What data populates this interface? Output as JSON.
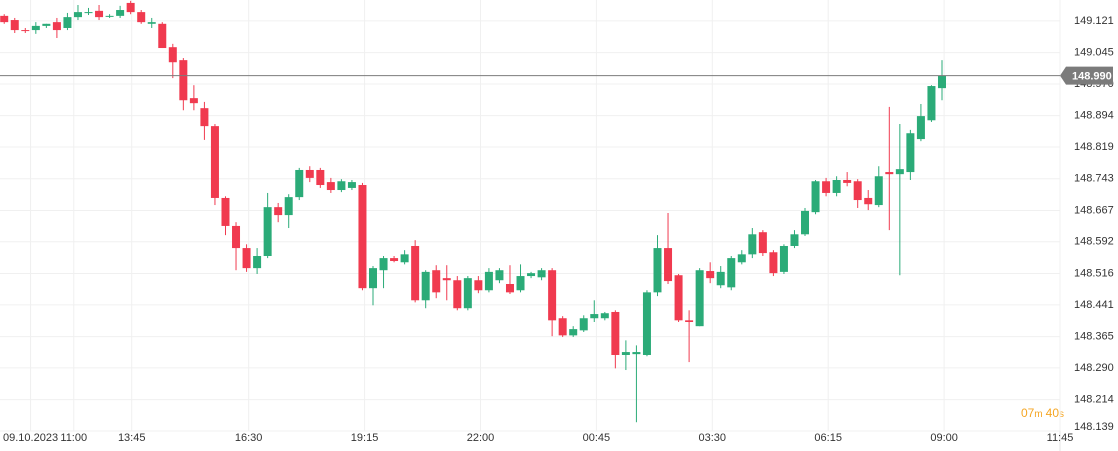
{
  "chart_data": {
    "type": "candlestick",
    "up_color": "#2bab78",
    "down_color": "#f03a4f",
    "grid": true,
    "xlim": [
      -0.4,
      100.2
    ],
    "ylim": [
      148.139,
      149.171
    ],
    "xticks": [
      {
        "value": 2.5,
        "label": "09.10.2023"
      },
      {
        "value": 6.6,
        "label": "11:00"
      },
      {
        "value": 12.1,
        "label": "13:45"
      },
      {
        "value": 23.2,
        "label": "16:30"
      },
      {
        "value": 34.2,
        "label": "19:15"
      },
      {
        "value": 45.2,
        "label": "22:00"
      },
      {
        "value": 56.2,
        "label": "00:45"
      },
      {
        "value": 67.2,
        "label": "03:30"
      },
      {
        "value": 78.2,
        "label": "06:15"
      },
      {
        "value": 89.2,
        "label": "09:00"
      },
      {
        "value": 100.2,
        "label": "11:45"
      }
    ],
    "yticks": [
      149.121,
      149.045,
      {
        "value": 148.97,
        "label": "148.970"
      },
      148.894,
      148.819,
      148.743,
      148.667,
      148.592,
      148.516,
      148.441,
      148.365,
      {
        "value": 148.29,
        "label": "148.290"
      },
      148.214,
      148.139
    ],
    "current_price": {
      "value": 148.99,
      "label": "148.990",
      "color": "#7b7b7b"
    },
    "countdown": {
      "minutes": "07",
      "m": "m",
      "seconds": "40",
      "s": "s",
      "color": "#f5a623"
    },
    "open": [
      149.133,
      149.123,
      149.099,
      149.099,
      149.109,
      149.118,
      149.104,
      149.13,
      149.142,
      149.145,
      149.133,
      149.133,
      149.164,
      149.142,
      149.114,
      149.114,
      149.058,
      149.027,
      148.936,
      148.912,
      148.869,
      148.697,
      148.63,
      148.577,
      148.529,
      148.558,
      148.675,
      148.656,
      148.699,
      148.764,
      148.764,
      148.735,
      148.716,
      148.721,
      148.728,
      148.481,
      148.524,
      148.553,
      148.543,
      148.582,
      148.452,
      148.524,
      148.505,
      148.5,
      148.433,
      148.5,
      148.476,
      148.5,
      148.491,
      148.476,
      148.51,
      148.507,
      148.524,
      148.409,
      148.368,
      148.38,
      148.409,
      148.409,
      148.424,
      148.321,
      148.323,
      148.321,
      148.471,
      148.577,
      148.512,
      148.404,
      148.39,
      148.522,
      148.488,
      148.483,
      148.543,
      148.562,
      148.615,
      148.567,
      148.52,
      148.582,
      148.61,
      148.663,
      148.737,
      148.709,
      148.74,
      148.737,
      148.697,
      148.68,
      148.759,
      148.754,
      148.759,
      148.838,
      148.883,
      148.96
    ],
    "high": [
      149.137,
      149.128,
      149.104,
      149.118,
      149.114,
      149.128,
      149.14,
      149.159,
      149.152,
      149.159,
      149.137,
      149.157,
      149.169,
      149.147,
      149.128,
      149.118,
      149.066,
      149.032,
      148.967,
      148.927,
      148.874,
      148.701,
      148.639,
      148.586,
      148.577,
      148.709,
      148.685,
      148.706,
      148.769,
      148.773,
      148.769,
      148.745,
      148.742,
      148.74,
      148.733,
      148.534,
      148.558,
      148.558,
      148.572,
      148.596,
      148.524,
      148.536,
      148.536,
      148.51,
      148.51,
      148.51,
      148.529,
      148.529,
      148.536,
      148.538,
      148.52,
      148.529,
      148.529,
      148.414,
      148.39,
      148.416,
      148.452,
      148.424,
      148.428,
      148.356,
      148.344,
      148.476,
      148.608,
      148.661,
      148.515,
      148.428,
      148.529,
      148.543,
      148.534,
      148.558,
      148.572,
      148.625,
      148.62,
      148.572,
      148.586,
      148.62,
      148.673,
      148.74,
      148.745,
      148.749,
      148.759,
      148.742,
      148.716,
      148.773,
      148.915,
      148.874,
      148.86,
      148.922,
      148.967,
      149.027
    ],
    "low": [
      149.114,
      149.092,
      149.092,
      149.09,
      149.104,
      149.08,
      149.099,
      149.123,
      149.135,
      149.123,
      149.128,
      149.128,
      149.137,
      149.114,
      149.104,
      149.056,
      148.984,
      148.907,
      148.907,
      148.836,
      148.68,
      148.608,
      148.524,
      148.52,
      148.515,
      148.553,
      148.639,
      148.625,
      148.692,
      148.735,
      148.721,
      148.709,
      148.711,
      148.716,
      148.476,
      148.44,
      148.481,
      148.543,
      148.538,
      148.447,
      148.433,
      148.457,
      148.452,
      148.428,
      148.428,
      148.469,
      148.471,
      148.493,
      148.467,
      148.471,
      148.505,
      148.5,
      148.366,
      148.364,
      148.364,
      148.376,
      148.4,
      148.404,
      148.289,
      148.285,
      148.16,
      148.318,
      148.462,
      148.491,
      148.4,
      148.304,
      148.39,
      148.493,
      148.481,
      148.476,
      148.538,
      148.553,
      148.558,
      148.51,
      148.515,
      148.577,
      148.606,
      148.658,
      148.701,
      148.701,
      148.725,
      148.673,
      148.668,
      148.675,
      148.62,
      148.512,
      148.74,
      148.833,
      148.879,
      148.931
    ],
    "close": [
      149.118,
      149.099,
      149.097,
      149.109,
      149.114,
      149.099,
      149.13,
      149.142,
      149.142,
      149.13,
      149.133,
      149.147,
      149.142,
      149.118,
      149.118,
      149.056,
      149.022,
      148.931,
      148.924,
      148.869,
      148.697,
      148.63,
      148.577,
      148.529,
      148.558,
      148.675,
      148.656,
      148.699,
      148.764,
      148.745,
      148.728,
      148.716,
      148.737,
      148.735,
      148.481,
      148.529,
      148.553,
      148.546,
      148.562,
      148.452,
      148.52,
      148.471,
      148.5,
      148.433,
      148.505,
      148.476,
      148.52,
      148.524,
      148.471,
      148.51,
      148.517,
      148.524,
      148.404,
      148.368,
      148.383,
      148.409,
      148.419,
      148.421,
      148.321,
      148.328,
      148.328,
      148.471,
      148.577,
      148.498,
      148.404,
      148.4,
      148.524,
      148.505,
      148.52,
      148.553,
      148.562,
      148.61,
      148.565,
      148.517,
      148.582,
      148.61,
      148.666,
      148.737,
      148.709,
      148.74,
      148.733,
      148.692,
      148.682,
      148.749,
      148.754,
      148.766,
      148.852,
      148.893,
      148.965,
      148.99
    ]
  }
}
